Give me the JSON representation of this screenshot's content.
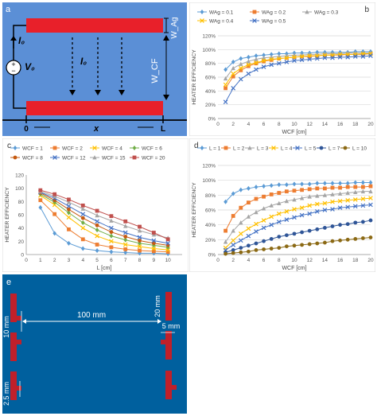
{
  "panels": {
    "a": {
      "label": "a",
      "labels": {
        "i0_top": "I₀",
        "i0_mid": "I₀",
        "v0": "V₀",
        "wag": "W_Ag",
        "wcf": "W_CF",
        "origin": "0",
        "x": "x",
        "L": "L",
        "plus": "+",
        "minus": "−"
      },
      "colors": {
        "background": "#5B8FD6",
        "strip": "#E8202A"
      }
    },
    "e": {
      "label": "e",
      "labels": {
        "dim_20": "20 mm",
        "dim_5": "5 mm",
        "dim_10": "10 mm",
        "dim_100": "100 mm",
        "dim_2_5": "2.5 mm"
      },
      "colors": {
        "background": "#00609E",
        "strip": "#C0202A"
      }
    }
  },
  "chart_data": [
    {
      "panel": "b",
      "type": "line",
      "xlabel": "WCF [cm]",
      "ylabel": "HEATER EFFICIENCY",
      "xlim": [
        0,
        20
      ],
      "ylim": [
        0,
        120
      ],
      "xticks": [
        "0",
        "2",
        "4",
        "6",
        "8",
        "10",
        "12",
        "14",
        "16",
        "18",
        "20"
      ],
      "yticks": [
        "0%",
        "20%",
        "40%",
        "60%",
        "80%",
        "100%",
        "120%"
      ],
      "grid": true,
      "legend": "top",
      "x": [
        1,
        2,
        3,
        4,
        5,
        6,
        7,
        8,
        9,
        10,
        11,
        12,
        13,
        14,
        15,
        16,
        17,
        18,
        19,
        20
      ],
      "series": [
        {
          "name": "WAg = 0.1",
          "color": "#5B9BD5",
          "marker": "diamond",
          "values": [
            71,
            82,
            87,
            89,
            91,
            92,
            93,
            94,
            94,
            95,
            95,
            95,
            96,
            96,
            96,
            96,
            96,
            97,
            97,
            97
          ]
        },
        {
          "name": "WAg = 0.2",
          "color": "#ED7D31",
          "marker": "square",
          "values": [
            44,
            61,
            70,
            76,
            80,
            83,
            85,
            87,
            88,
            89,
            90,
            90,
            91,
            92,
            92,
            92,
            93,
            93,
            93,
            94
          ]
        },
        {
          "name": "WAg = 0.3",
          "color": "#A5A5A5",
          "marker": "triangle",
          "values": [
            58,
            73,
            79,
            83,
            86,
            88,
            89,
            90,
            91,
            92,
            92,
            93,
            93,
            94,
            94,
            94,
            95,
            95,
            95,
            95
          ]
        },
        {
          "name": "WAg = 0.4",
          "color": "#FFC000",
          "marker": "x",
          "values": [
            49,
            65,
            73,
            78,
            81,
            84,
            86,
            87,
            88,
            89,
            90,
            91,
            91,
            92,
            92,
            93,
            93,
            93,
            94,
            94
          ]
        },
        {
          "name": "WAg = 0.5",
          "color": "#4472C4",
          "marker": "x",
          "values": [
            24,
            44,
            57,
            65,
            71,
            75,
            78,
            80,
            82,
            84,
            85,
            86,
            87,
            88,
            88,
            89,
            89,
            90,
            90,
            91
          ]
        }
      ]
    },
    {
      "panel": "c",
      "type": "line",
      "xlabel": "L [cm]",
      "ylabel": "HEATER EFFICIENCY",
      "xlim": [
        0,
        11
      ],
      "ylim": [
        0,
        120
      ],
      "xticks": [
        "0",
        "1",
        "2",
        "3",
        "4",
        "5",
        "6",
        "7",
        "8",
        "9",
        "10"
      ],
      "yticks": [
        "0",
        "20",
        "40",
        "60",
        "80",
        "100",
        "120"
      ],
      "grid": false,
      "legend": "top",
      "x": [
        1,
        2,
        3,
        4,
        5,
        6,
        7,
        8,
        9,
        10
      ],
      "series": [
        {
          "name": "WCF = 1",
          "color": "#5B9BD5",
          "marker": "diamond",
          "values": [
            71,
            32,
            17,
            9,
            6,
            4,
            3,
            2,
            2,
            1
          ]
        },
        {
          "name": "WCF = 2",
          "color": "#ED7D31",
          "marker": "square",
          "values": [
            82,
            61,
            38,
            23,
            15,
            11,
            8,
            6,
            5,
            4
          ]
        },
        {
          "name": "WCF = 4",
          "color": "#FFC000",
          "marker": "x",
          "values": [
            89,
            75,
            56,
            40,
            28,
            20,
            15,
            12,
            9,
            7
          ]
        },
        {
          "name": "WCF = 6",
          "color": "#70AD47",
          "marker": "diamond",
          "values": [
            91,
            79,
            63,
            48,
            37,
            28,
            22,
            17,
            14,
            11
          ]
        },
        {
          "name": "WCF = 8",
          "color": "#C55A11",
          "marker": "circle",
          "values": [
            93,
            82,
            68,
            55,
            44,
            34,
            27,
            21,
            17,
            14
          ]
        },
        {
          "name": "WCF = 12",
          "color": "#4472C4",
          "marker": "x",
          "values": [
            94,
            85,
            73,
            61,
            50,
            40,
            33,
            26,
            21,
            17
          ]
        },
        {
          "name": "WCF = 15",
          "color": "#A5A5A5",
          "marker": "triangle",
          "values": [
            95,
            88,
            79,
            69,
            59,
            51,
            43,
            36,
            30,
            25
          ]
        },
        {
          "name": "WCF = 20",
          "color": "#C0504D",
          "marker": "square",
          "values": [
            97,
            91,
            83,
            74,
            66,
            58,
            50,
            42,
            33,
            23
          ]
        }
      ]
    },
    {
      "panel": "d",
      "type": "line",
      "xlabel": "WCF [cm]",
      "ylabel": "HEATER EFFICIENCY",
      "xlim": [
        0,
        20
      ],
      "ylim": [
        0,
        120
      ],
      "xticks": [
        "0",
        "2",
        "4",
        "6",
        "8",
        "10",
        "12",
        "14",
        "16",
        "18",
        "20"
      ],
      "yticks": [
        "0%",
        "20%",
        "40%",
        "60%",
        "80%",
        "100%",
        "120%"
      ],
      "grid": true,
      "legend": "top",
      "x": [
        1,
        2,
        3,
        4,
        5,
        6,
        7,
        8,
        9,
        10,
        11,
        12,
        13,
        14,
        15,
        16,
        17,
        18,
        19,
        20
      ],
      "series": [
        {
          "name": "L = 1",
          "color": "#5B9BD5",
          "marker": "diamond",
          "values": [
            71,
            82,
            87,
            89,
            91,
            92,
            93,
            94,
            94,
            95,
            95,
            95,
            96,
            96,
            96,
            96,
            96,
            97,
            97,
            97
          ]
        },
        {
          "name": "L = 2",
          "color": "#ED7D31",
          "marker": "square",
          "values": [
            32,
            52,
            63,
            70,
            75,
            78,
            81,
            83,
            85,
            86,
            87,
            88,
            89,
            89,
            90,
            90,
            91,
            91,
            91,
            92
          ]
        },
        {
          "name": "L = 3",
          "color": "#A5A5A5",
          "marker": "triangle",
          "values": [
            17,
            32,
            43,
            51,
            57,
            62,
            66,
            69,
            72,
            74,
            76,
            78,
            79,
            80,
            81,
            82,
            83,
            84,
            85,
            85
          ]
        },
        {
          "name": "L = 4",
          "color": "#FFC000",
          "marker": "x",
          "values": [
            9,
            19,
            28,
            35,
            41,
            46,
            51,
            55,
            58,
            61,
            63,
            66,
            68,
            69,
            71,
            72,
            73,
            74,
            75,
            76
          ]
        },
        {
          "name": "L = 5",
          "color": "#4472C4",
          "marker": "x",
          "values": [
            6,
            13,
            19,
            25,
            31,
            36,
            40,
            44,
            47,
            50,
            53,
            55,
            58,
            60,
            61,
            63,
            64,
            65,
            66,
            67
          ]
        },
        {
          "name": "L = 7",
          "color": "#2F5597",
          "marker": "circle",
          "values": [
            3,
            6,
            9,
            12,
            15,
            18,
            21,
            24,
            26,
            28,
            30,
            32,
            34,
            36,
            38,
            40,
            41,
            43,
            44,
            46
          ]
        },
        {
          "name": "L = 10",
          "color": "#8B6914",
          "marker": "circle",
          "values": [
            1,
            2,
            3,
            4,
            6,
            7,
            8,
            9,
            11,
            12,
            13,
            14,
            15,
            16,
            18,
            19,
            20,
            21,
            22,
            23
          ]
        }
      ]
    }
  ]
}
